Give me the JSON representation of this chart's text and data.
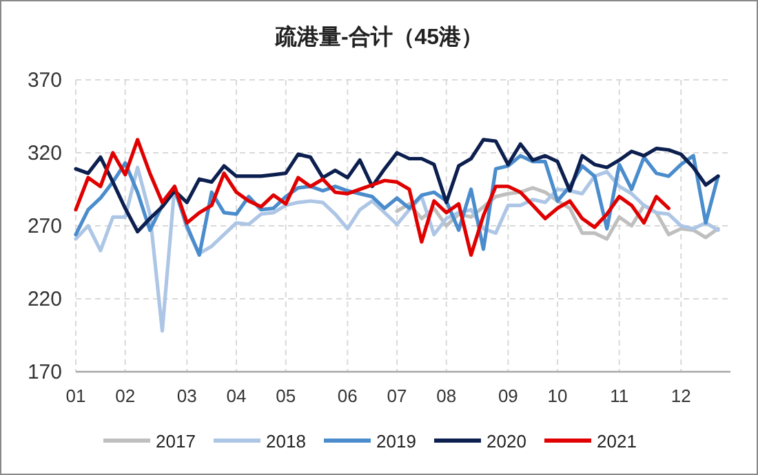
{
  "chart_data": {
    "type": "line",
    "title": "疏港量-合计（45港）",
    "categories": [
      "01",
      null,
      null,
      null,
      "02",
      null,
      null,
      null,
      null,
      "03",
      null,
      null,
      null,
      "04",
      null,
      null,
      null,
      "05",
      null,
      null,
      null,
      null,
      "06",
      null,
      null,
      null,
      "07",
      null,
      null,
      null,
      "08",
      null,
      null,
      null,
      null,
      "09",
      null,
      null,
      null,
      "10",
      null,
      null,
      null,
      null,
      "11",
      null,
      null,
      null,
      null,
      "12",
      null,
      null,
      null
    ],
    "ylim": [
      170,
      370
    ],
    "yticks": [
      170,
      220,
      270,
      320,
      370
    ],
    "grid": true,
    "legend": "bottom",
    "marker": "none",
    "line_style": "solid",
    "series": [
      {
        "name": "2017",
        "color": "#bfbfbf",
        "values": [
          null,
          null,
          null,
          null,
          null,
          null,
          null,
          null,
          null,
          null,
          null,
          null,
          null,
          null,
          null,
          null,
          null,
          null,
          null,
          null,
          null,
          null,
          null,
          null,
          null,
          null,
          280,
          285,
          275,
          282,
          270,
          278,
          276,
          283,
          290,
          292,
          293,
          296,
          293,
          287,
          282,
          265,
          265,
          261,
          276,
          270,
          284,
          279,
          264,
          268,
          267,
          262,
          268
        ]
      },
      {
        "name": "2018",
        "color": "#adc6e5",
        "values": [
          261,
          270,
          253,
          276,
          276,
          310,
          278,
          198,
          297,
          268,
          251,
          256,
          264,
          272,
          271,
          278,
          279,
          284,
          286,
          287,
          286,
          278,
          268,
          281,
          287,
          279,
          271,
          281,
          290,
          264,
          275,
          279,
          281,
          268,
          265,
          284,
          284,
          288,
          286,
          295,
          294,
          292,
          304,
          307,
          297,
          292,
          284,
          279,
          278,
          270,
          268,
          272,
          267
        ]
      },
      {
        "name": "2019",
        "color": "#4a8ccc",
        "values": [
          264,
          281,
          289,
          300,
          313,
          293,
          267,
          284,
          295,
          270,
          250,
          293,
          279,
          278,
          290,
          281,
          282,
          290,
          296,
          297,
          294,
          297,
          294,
          292,
          290,
          282,
          289,
          282,
          291,
          293,
          287,
          267,
          295,
          254,
          309,
          311,
          318,
          314,
          314,
          287,
          297,
          311,
          304,
          268,
          312,
          295,
          317,
          306,
          304,
          312,
          318,
          272,
          304
        ]
      },
      {
        "name": "2020",
        "color": "#0c1f4f",
        "values": [
          309,
          306,
          317,
          300,
          282,
          266,
          275,
          283,
          294,
          286,
          302,
          300,
          311,
          304,
          304,
          304,
          305,
          306,
          319,
          317,
          303,
          308,
          303,
          315,
          297,
          309,
          320,
          316,
          316,
          312,
          286,
          311,
          316,
          329,
          328,
          312,
          326,
          315,
          318,
          314,
          294,
          318,
          312,
          310,
          315,
          321,
          318,
          323,
          322,
          319,
          310,
          298,
          304
        ]
      },
      {
        "name": "2021",
        "color": "#e00000",
        "values": [
          281,
          303,
          297,
          320,
          305,
          329,
          306,
          286,
          297,
          272,
          279,
          284,
          306,
          293,
          287,
          283,
          291,
          285,
          303,
          297,
          302,
          293,
          292,
          295,
          298,
          301,
          300,
          295,
          259,
          287,
          279,
          285,
          250,
          277,
          297,
          297,
          293,
          284,
          275,
          282,
          287,
          275,
          269,
          278,
          290,
          284,
          272,
          290,
          282,
          null,
          null,
          null,
          null
        ]
      }
    ]
  }
}
